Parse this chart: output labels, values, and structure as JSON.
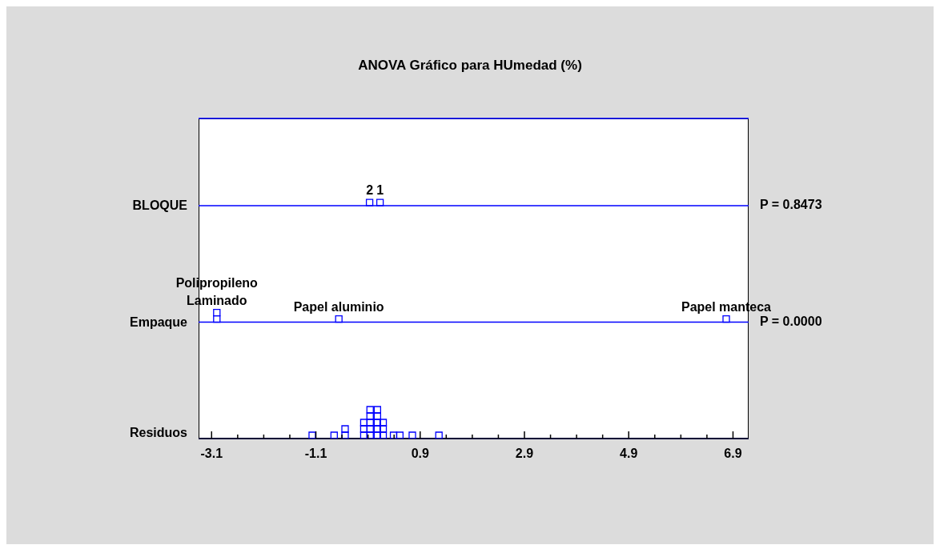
{
  "chart_data": {
    "type": "scatter",
    "title": "ANOVA Gráfico para HUmedad (%)",
    "orientation": "horizontal",
    "categories": [
      "BLOQUE",
      "Empaque",
      "Residuos"
    ],
    "xlim": [
      -3.35,
      7.2
    ],
    "xticks": [
      -3.1,
      {
        "value": -2.6,
        "label": null
      },
      {
        "value": -2.1,
        "label": null
      },
      {
        "value": -1.6,
        "label": null
      },
      -1.1,
      {
        "value": -0.6,
        "label": null
      },
      {
        "value": -0.1,
        "label": null
      },
      {
        "value": 0.4,
        "label": null
      },
      0.9,
      {
        "value": 1.4,
        "label": null
      },
      {
        "value": 1.9,
        "label": null
      },
      {
        "value": 2.4,
        "label": null
      },
      2.9,
      {
        "value": 3.4,
        "label": null
      },
      {
        "value": 3.9,
        "label": null
      },
      {
        "value": 4.4,
        "label": null
      },
      4.9,
      {
        "value": 5.4,
        "label": null
      },
      {
        "value": 5.9,
        "label": null
      },
      {
        "value": 6.4,
        "label": null
      },
      6.9
    ],
    "grid": "y",
    "marker": "square",
    "series": [
      {
        "color": "#0000ff",
        "x": [
          "BLOQUE",
          "BLOQUE",
          "Empaque",
          "Empaque",
          "Empaque",
          "Empaque",
          "Residuos",
          "Residuos",
          "Residuos",
          "Residuos",
          "Residuos",
          "Residuos",
          "Residuos",
          "Residuos",
          "Residuos",
          "Residuos",
          "Residuos",
          "Residuos",
          "Residuos",
          "Residuos",
          "Residuos",
          "Residuos",
          "Residuos",
          "Residuos",
          "Residuos",
          "Residuos",
          "Residuos",
          "Residuos",
          "Residuos",
          "Residuos"
        ],
        "values": [
          -0.07,
          0.13,
          -3.0,
          -3.0,
          -0.66,
          6.77,
          -1.17,
          -0.75,
          -0.54,
          -0.54,
          -0.18,
          -0.18,
          -0.18,
          -0.06,
          -0.06,
          -0.06,
          -0.06,
          -0.06,
          0.08,
          0.08,
          0.08,
          0.08,
          0.08,
          0.19,
          0.19,
          0.19,
          0.39,
          0.51,
          0.75,
          1.26
        ]
      }
    ],
    "annotations": [
      "P = 0.8473",
      "P = 0.0000",
      {
        "text": "2",
        "x": -0.07,
        "y": "BLOQUE"
      },
      {
        "text": "1",
        "x": 0.13,
        "y": "BLOQUE"
      },
      {
        "text": "Laminado",
        "x": -3.0,
        "y": "Empaque"
      },
      {
        "text": "Polipropileno",
        "x": -3.0,
        "y": "Empaque"
      },
      {
        "text": "Papel aluminio",
        "x": -0.66,
        "y": "Empaque"
      },
      {
        "text": "Papel manteca",
        "x": 6.77,
        "y": "Empaque"
      }
    ]
  }
}
